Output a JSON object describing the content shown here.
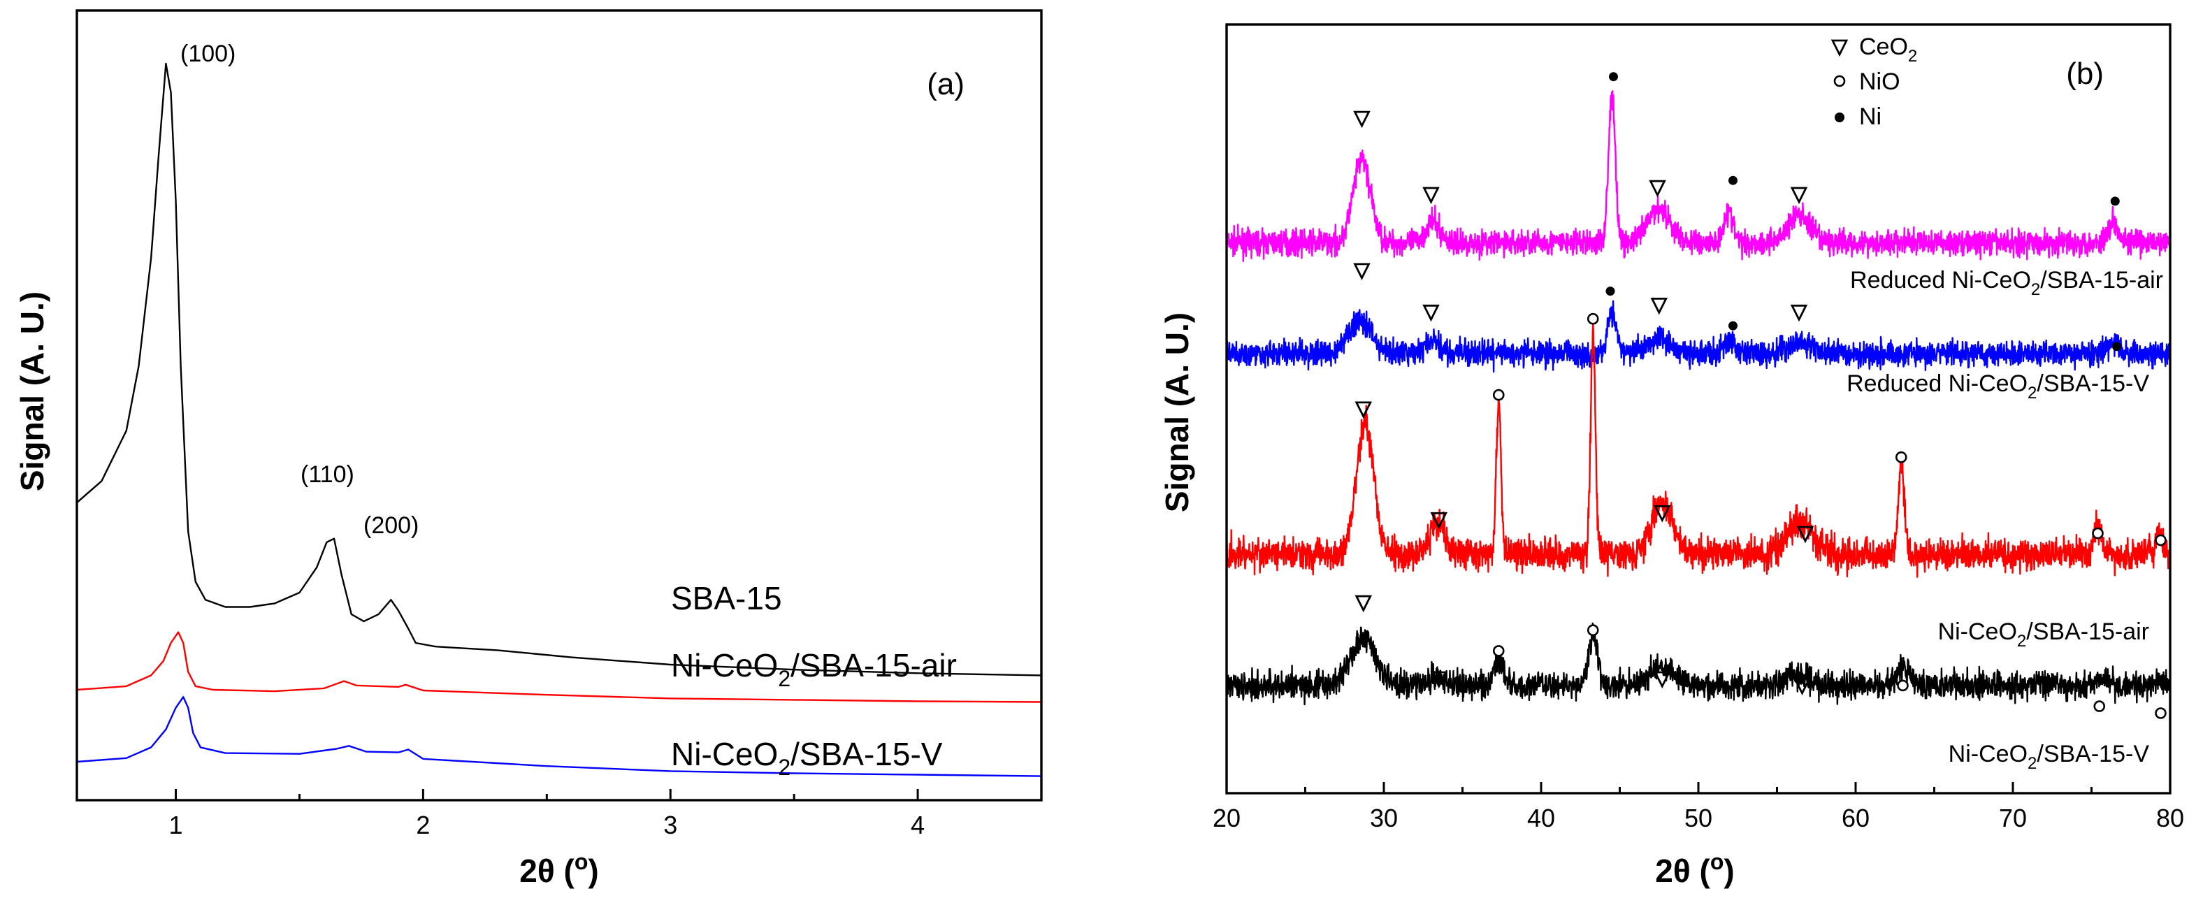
{
  "chart_data": [
    {
      "id": "a",
      "type": "line",
      "panel_label": "(a)",
      "xlabel": "2θ (°)",
      "ylabel": "Signal (A. U.)",
      "xlim": [
        0.6,
        4.5
      ],
      "ylim": [
        0,
        100
      ],
      "x_ticks": [
        "1",
        "2",
        "3",
        "4"
      ],
      "peak_labels": [
        {
          "text": "(100)",
          "x": 0.95,
          "y": 97
        },
        {
          "text": "(110)",
          "x": 1.63,
          "y": 37
        },
        {
          "text": "(200)",
          "x": 1.87,
          "y": 31
        }
      ],
      "series": [
        {
          "name": "SBA-15",
          "color": "#000000",
          "points": [
            [
              0.6,
              36
            ],
            [
              0.7,
              39
            ],
            [
              0.8,
              46
            ],
            [
              0.85,
              55
            ],
            [
              0.9,
              70
            ],
            [
              0.93,
              84
            ],
            [
              0.96,
              97
            ],
            [
              0.98,
              93
            ],
            [
              1.0,
              78
            ],
            [
              1.02,
              55
            ],
            [
              1.05,
              32
            ],
            [
              1.08,
              25
            ],
            [
              1.12,
              22.5
            ],
            [
              1.2,
              21.5
            ],
            [
              1.3,
              21.5
            ],
            [
              1.4,
              22
            ],
            [
              1.5,
              23.5
            ],
            [
              1.57,
              27
            ],
            [
              1.61,
              30.5
            ],
            [
              1.64,
              31
            ],
            [
              1.67,
              26
            ],
            [
              1.71,
              20.5
            ],
            [
              1.76,
              19.5
            ],
            [
              1.82,
              20.5
            ],
            [
              1.87,
              22.5
            ],
            [
              1.9,
              21
            ],
            [
              1.94,
              18.5
            ],
            [
              1.97,
              16.5
            ],
            [
              2.05,
              16
            ],
            [
              2.3,
              15.5
            ],
            [
              2.6,
              14.5
            ],
            [
              3.0,
              13.5
            ],
            [
              3.5,
              12.8
            ],
            [
              4.0,
              12.3
            ],
            [
              4.5,
              12
            ]
          ]
        },
        {
          "name": "Ni-CeO2/SBA-15-air",
          "color": "#ff0000",
          "points": [
            [
              0.6,
              10
            ],
            [
              0.8,
              10.5
            ],
            [
              0.9,
              12
            ],
            [
              0.95,
              14
            ],
            [
              0.98,
              16.5
            ],
            [
              1.01,
              18
            ],
            [
              1.03,
              16.5
            ],
            [
              1.05,
              12.5
            ],
            [
              1.08,
              10.5
            ],
            [
              1.15,
              10
            ],
            [
              1.4,
              9.8
            ],
            [
              1.6,
              10.2
            ],
            [
              1.68,
              11.2
            ],
            [
              1.73,
              10.6
            ],
            [
              1.9,
              10.4
            ],
            [
              1.93,
              10.7
            ],
            [
              2.0,
              9.9
            ],
            [
              2.5,
              9.3
            ],
            [
              3.0,
              8.8
            ],
            [
              3.5,
              8.6
            ],
            [
              4.0,
              8.4
            ],
            [
              4.5,
              8.3
            ]
          ]
        },
        {
          "name": "Ni-CeO2/SBA-15-V",
          "color": "#0000ff",
          "points": [
            [
              0.6,
              0
            ],
            [
              0.8,
              0.5
            ],
            [
              0.9,
              2
            ],
            [
              0.96,
              4.5
            ],
            [
              1.0,
              7.5
            ],
            [
              1.03,
              9
            ],
            [
              1.05,
              7.5
            ],
            [
              1.07,
              4
            ],
            [
              1.1,
              2
            ],
            [
              1.2,
              1.2
            ],
            [
              1.5,
              1.1
            ],
            [
              1.65,
              1.8
            ],
            [
              1.7,
              2.2
            ],
            [
              1.77,
              1.4
            ],
            [
              1.9,
              1.3
            ],
            [
              1.94,
              1.7
            ],
            [
              2.0,
              0.4
            ],
            [
              2.5,
              -0.6
            ],
            [
              3.0,
              -1.3
            ],
            [
              3.5,
              -1.6
            ],
            [
              4.0,
              -1.8
            ],
            [
              4.5,
              -2
            ]
          ]
        }
      ],
      "sample_labels": [
        "SBA-15",
        "Ni-CeO2/SBA-15-air",
        "Ni-CeO2/SBA-15-V"
      ]
    },
    {
      "id": "b",
      "type": "line",
      "panel_label": "(b)",
      "xlabel": "2θ (°)",
      "ylabel": "Signal (A. U.)",
      "xlim": [
        20,
        80
      ],
      "ylim": [
        0,
        100
      ],
      "x_ticks": [
        "20",
        "30",
        "40",
        "50",
        "60",
        "70",
        "80"
      ],
      "legend": {
        "position": "top-center",
        "entries": [
          {
            "marker": "triangle",
            "label": "CeO2"
          },
          {
            "marker": "open-circle",
            "label": "NiO"
          },
          {
            "marker": "filled-circle",
            "label": "Ni"
          }
        ]
      },
      "series": [
        {
          "name": "Reduced Ni-CeO2/SBA-15-air",
          "color": "#ff00ff",
          "baseline": 73,
          "noise": 1.3,
          "peaks": [
            [
              28.6,
              12,
              0.55
            ],
            [
              33.1,
              3,
              0.45
            ],
            [
              44.5,
              21,
              0.22
            ],
            [
              47.5,
              5,
              0.7
            ],
            [
              51.9,
              4.5,
              0.3
            ],
            [
              56.4,
              4,
              0.7
            ],
            [
              76.4,
              3,
              0.35
            ]
          ]
        },
        {
          "name": "Reduced Ni-CeO2/SBA-15-V",
          "color": "#0000ff",
          "baseline": 57,
          "noise": 1.3,
          "peaks": [
            [
              28.5,
              5,
              0.7
            ],
            [
              33.1,
              1.6,
              0.5
            ],
            [
              44.5,
              5.5,
              0.3
            ],
            [
              47.5,
              2.4,
              0.7
            ],
            [
              52.0,
              1.6,
              0.4
            ],
            [
              56.5,
              1.6,
              0.7
            ],
            [
              76.4,
              1.2,
              0.4
            ]
          ]
        },
        {
          "name": "Ni-CeO2/SBA-15-air",
          "color": "#ff0000",
          "baseline": 28,
          "noise": 1.6,
          "peaks": [
            [
              28.8,
              19,
              0.55
            ],
            [
              33.4,
              5,
              0.45
            ],
            [
              37.3,
              22,
              0.15
            ],
            [
              43.3,
              32,
              0.15
            ],
            [
              47.7,
              7,
              0.7
            ],
            [
              56.5,
              5,
              0.8
            ],
            [
              62.9,
              13,
              0.18
            ],
            [
              75.4,
              4,
              0.25
            ],
            [
              79.3,
              3,
              0.2
            ]
          ]
        },
        {
          "name": "Ni-CeO2/SBA-15-V",
          "color": "#000000",
          "baseline": 9,
          "noise": 1.4,
          "peaks": [
            [
              28.7,
              6.5,
              0.8
            ],
            [
              33.3,
              1.5,
              0.5
            ],
            [
              37.3,
              4,
              0.3
            ],
            [
              43.3,
              7.5,
              0.3
            ],
            [
              47.6,
              2.5,
              0.8
            ],
            [
              56.3,
              1.5,
              0.8
            ],
            [
              63.0,
              2.7,
              0.4
            ],
            [
              75.6,
              0.8,
              0.4
            ],
            [
              79.3,
              0.8,
              0.3
            ]
          ]
        }
      ],
      "markers": [
        {
          "type": "triangle",
          "x": 28.6,
          "y": 91
        },
        {
          "type": "triangle",
          "x": 33.0,
          "y": 80
        },
        {
          "type": "triangle",
          "x": 47.4,
          "y": 81
        },
        {
          "type": "triangle",
          "x": 56.4,
          "y": 80
        },
        {
          "type": "filled",
          "x": 44.6,
          "y": 97
        },
        {
          "type": "filled",
          "x": 52.2,
          "y": 82
        },
        {
          "type": "filled",
          "x": 76.5,
          "y": 79
        },
        {
          "type": "triangle",
          "x": 28.6,
          "y": 69
        },
        {
          "type": "triangle",
          "x": 33.0,
          "y": 63
        },
        {
          "type": "triangle",
          "x": 47.5,
          "y": 64
        },
        {
          "type": "triangle",
          "x": 56.4,
          "y": 63
        },
        {
          "type": "filled",
          "x": 44.4,
          "y": 66
        },
        {
          "type": "filled",
          "x": 52.2,
          "y": 61
        },
        {
          "type": "filled",
          "x": 76.6,
          "y": 58
        },
        {
          "type": "triangle",
          "x": 28.7,
          "y": 49
        },
        {
          "type": "triangle",
          "x": 33.5,
          "y": 33
        },
        {
          "type": "triangle",
          "x": 47.7,
          "y": 34
        },
        {
          "type": "triangle",
          "x": 56.8,
          "y": 31
        },
        {
          "type": "open",
          "x": 37.3,
          "y": 51
        },
        {
          "type": "open",
          "x": 43.3,
          "y": 62
        },
        {
          "type": "open",
          "x": 62.9,
          "y": 42
        },
        {
          "type": "open",
          "x": 75.4,
          "y": 31
        },
        {
          "type": "open",
          "x": 79.4,
          "y": 30
        },
        {
          "type": "triangle",
          "x": 28.7,
          "y": 21
        },
        {
          "type": "triangle",
          "x": 33.5,
          "y": 10
        },
        {
          "type": "triangle",
          "x": 47.7,
          "y": 10
        },
        {
          "type": "triangle",
          "x": 56.6,
          "y": 9
        },
        {
          "type": "open",
          "x": 37.3,
          "y": 14
        },
        {
          "type": "open",
          "x": 43.3,
          "y": 17
        },
        {
          "type": "open",
          "x": 63.0,
          "y": 9
        },
        {
          "type": "open",
          "x": 75.5,
          "y": 6
        },
        {
          "type": "open",
          "x": 79.4,
          "y": 5
        }
      ],
      "sample_labels": [
        "Reduced Ni-CeO2/SBA-15-air",
        "Reduced Ni-CeO2/SBA-15-V",
        "Ni-CeO2/SBA-15-air",
        "Ni-CeO2/SBA-15-V"
      ]
    }
  ]
}
